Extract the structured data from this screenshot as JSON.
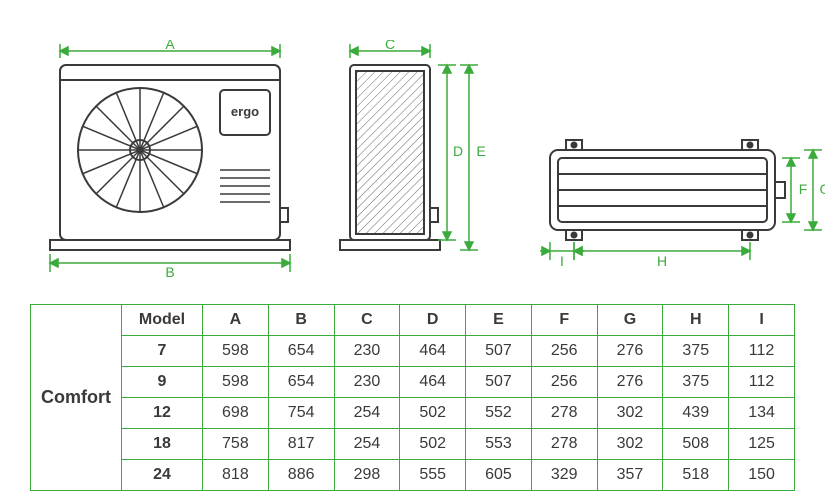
{
  "brand_label": "ergo",
  "series_label": "Comfort",
  "dim_labels": {
    "A": "A",
    "B": "B",
    "C": "C",
    "D": "D",
    "E": "E",
    "F": "F",
    "G": "G",
    "H": "H",
    "I": "I"
  },
  "table": {
    "header": [
      "Model",
      "A",
      "B",
      "C",
      "D",
      "E",
      "F",
      "G",
      "H",
      "I"
    ],
    "rows": [
      {
        "model": "7",
        "vals": [
          "598",
          "654",
          "230",
          "464",
          "507",
          "256",
          "276",
          "375",
          "112"
        ]
      },
      {
        "model": "9",
        "vals": [
          "598",
          "654",
          "230",
          "464",
          "507",
          "256",
          "276",
          "375",
          "112"
        ]
      },
      {
        "model": "12",
        "vals": [
          "698",
          "754",
          "254",
          "502",
          "552",
          "278",
          "302",
          "439",
          "134"
        ]
      },
      {
        "model": "18",
        "vals": [
          "758",
          "817",
          "254",
          "502",
          "553",
          "278",
          "302",
          "508",
          "125"
        ]
      },
      {
        "model": "24",
        "vals": [
          "818",
          "886",
          "298",
          "555",
          "605",
          "329",
          "357",
          "518",
          "150"
        ]
      }
    ]
  },
  "colors": {
    "dim": "#3bab3b",
    "line": "#3a3a3a",
    "hatch": "#6a6a6a"
  }
}
